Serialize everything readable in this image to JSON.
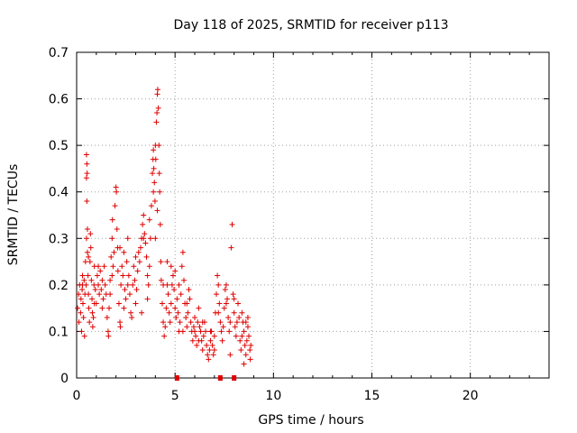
{
  "chart_data": {
    "type": "scatter",
    "title": "Day 118 of 2025, SRMTID for receiver p113",
    "xlabel": "GPS time / hours",
    "ylabel": "SRMTID / TECUs",
    "xlim": [
      0,
      24
    ],
    "ylim": [
      0,
      0.7
    ],
    "xticks": [
      "0",
      "5",
      "10",
      "15",
      "20"
    ],
    "yticks": [
      "0",
      "0.1",
      "0.2",
      "0.3",
      "0.4",
      "0.5",
      "0.6",
      "0.7"
    ],
    "grid": true,
    "marker": "plus",
    "color": "#e00000",
    "series": [
      {
        "name": "SRMTID",
        "points": [
          [
            0.05,
            0.15
          ],
          [
            0.1,
            0.18
          ],
          [
            0.12,
            0.12
          ],
          [
            0.15,
            0.2
          ],
          [
            0.2,
            0.14
          ],
          [
            0.22,
            0.17
          ],
          [
            0.25,
            0.1
          ],
          [
            0.28,
            0.19
          ],
          [
            0.3,
            0.22
          ],
          [
            0.32,
            0.16
          ],
          [
            0.35,
            0.13
          ],
          [
            0.38,
            0.21
          ],
          [
            0.4,
            0.09
          ],
          [
            0.42,
            0.18
          ],
          [
            0.45,
            0.25
          ],
          [
            0.48,
            0.2
          ],
          [
            0.5,
            0.3
          ],
          [
            0.52,
            0.38
          ],
          [
            0.5,
            0.43
          ],
          [
            0.52,
            0.46
          ],
          [
            0.5,
            0.48
          ],
          [
            0.53,
            0.44
          ],
          [
            0.55,
            0.32
          ],
          [
            0.55,
            0.27
          ],
          [
            0.58,
            0.22
          ],
          [
            0.6,
            0.18
          ],
          [
            0.62,
            0.15
          ],
          [
            0.65,
            0.12
          ],
          [
            0.68,
            0.25
          ],
          [
            0.7,
            0.31
          ],
          [
            0.72,
            0.28
          ],
          [
            0.75,
            0.21
          ],
          [
            0.78,
            0.17
          ],
          [
            0.8,
            0.14
          ],
          [
            0.82,
            0.11
          ],
          [
            0.85,
            0.13
          ],
          [
            0.88,
            0.2
          ],
          [
            0.9,
            0.24
          ],
          [
            0.95,
            0.19
          ],
          [
            1.0,
            0.16
          ],
          [
            1.05,
            0.22
          ],
          [
            1.1,
            0.2
          ],
          [
            1.15,
            0.18
          ],
          [
            1.2,
            0.23
          ],
          [
            1.25,
            0.19
          ],
          [
            1.3,
            0.21
          ],
          [
            1.35,
            0.17
          ],
          [
            1.4,
            0.24
          ],
          [
            1.45,
            0.2
          ],
          [
            1.5,
            0.18
          ],
          [
            1.55,
            0.13
          ],
          [
            1.6,
            0.1
          ],
          [
            1.62,
            0.09
          ],
          [
            1.65,
            0.15
          ],
          [
            1.7,
            0.21
          ],
          [
            1.75,
            0.26
          ],
          [
            1.8,
            0.3
          ],
          [
            1.82,
            0.34
          ],
          [
            1.85,
            0.24
          ],
          [
            1.9,
            0.27
          ],
          [
            1.95,
            0.37
          ],
          [
            2.0,
            0.41
          ],
          [
            2.02,
            0.4
          ],
          [
            2.05,
            0.32
          ],
          [
            2.08,
            0.28
          ],
          [
            2.1,
            0.23
          ],
          [
            2.15,
            0.16
          ],
          [
            2.2,
            0.12
          ],
          [
            2.22,
            0.11
          ],
          [
            2.25,
            0.2
          ],
          [
            2.3,
            0.24
          ],
          [
            2.35,
            0.22
          ],
          [
            2.4,
            0.27
          ],
          [
            2.45,
            0.19
          ],
          [
            2.5,
            0.17
          ],
          [
            2.55,
            0.25
          ],
          [
            2.6,
            0.3
          ],
          [
            2.65,
            0.22
          ],
          [
            2.7,
            0.18
          ],
          [
            2.75,
            0.14
          ],
          [
            2.8,
            0.13
          ],
          [
            2.85,
            0.2
          ],
          [
            2.9,
            0.24
          ],
          [
            2.95,
            0.21
          ],
          [
            3.0,
            0.16
          ],
          [
            3.05,
            0.19
          ],
          [
            3.1,
            0.23
          ],
          [
            3.15,
            0.27
          ],
          [
            3.2,
            0.25
          ],
          [
            3.25,
            0.28
          ],
          [
            3.3,
            0.3
          ],
          [
            3.35,
            0.33
          ],
          [
            3.4,
            0.35
          ],
          [
            3.45,
            0.31
          ],
          [
            3.5,
            0.29
          ],
          [
            3.55,
            0.26
          ],
          [
            3.6,
            0.22
          ],
          [
            3.65,
            0.2
          ],
          [
            3.7,
            0.24
          ],
          [
            3.75,
            0.3
          ],
          [
            3.8,
            0.37
          ],
          [
            3.85,
            0.44
          ],
          [
            3.88,
            0.47
          ],
          [
            3.9,
            0.49
          ],
          [
            3.92,
            0.45
          ],
          [
            3.95,
            0.42
          ],
          [
            3.98,
            0.38
          ],
          [
            4.0,
            0.5
          ],
          [
            4.02,
            0.47
          ],
          [
            4.05,
            0.55
          ],
          [
            4.08,
            0.57
          ],
          [
            4.1,
            0.61
          ],
          [
            4.12,
            0.62
          ],
          [
            4.15,
            0.58
          ],
          [
            4.18,
            0.5
          ],
          [
            4.2,
            0.44
          ],
          [
            4.22,
            0.4
          ],
          [
            4.25,
            0.33
          ],
          [
            4.28,
            0.25
          ],
          [
            4.3,
            0.21
          ],
          [
            4.35,
            0.16
          ],
          [
            4.4,
            0.12
          ],
          [
            4.45,
            0.09
          ],
          [
            4.5,
            0.11
          ],
          [
            4.55,
            0.15
          ],
          [
            4.6,
            0.2
          ],
          [
            4.65,
            0.18
          ],
          [
            4.7,
            0.14
          ],
          [
            4.75,
            0.12
          ],
          [
            4.8,
            0.16
          ],
          [
            4.85,
            0.2
          ],
          [
            4.9,
            0.22
          ],
          [
            4.95,
            0.19
          ],
          [
            5.0,
            0.15
          ],
          [
            5.05,
            0.13
          ],
          [
            5.1,
            0.17
          ],
          [
            5.15,
            0.14
          ],
          [
            5.2,
            0.1
          ],
          [
            5.25,
            0.12
          ],
          [
            5.3,
            0.18
          ],
          [
            5.35,
            0.24
          ],
          [
            5.4,
            0.27
          ],
          [
            5.45,
            0.21
          ],
          [
            5.5,
            0.16
          ],
          [
            5.55,
            0.13
          ],
          [
            5.6,
            0.11
          ],
          [
            5.65,
            0.14
          ],
          [
            5.7,
            0.19
          ],
          [
            5.75,
            0.17
          ],
          [
            5.8,
            0.12
          ],
          [
            5.85,
            0.1
          ],
          [
            5.9,
            0.08
          ],
          [
            5.95,
            0.11
          ],
          [
            6.0,
            0.13
          ],
          [
            6.05,
            0.09
          ],
          [
            6.1,
            0.07
          ],
          [
            6.15,
            0.12
          ],
          [
            6.2,
            0.15
          ],
          [
            6.25,
            0.11
          ],
          [
            6.3,
            0.1
          ],
          [
            6.35,
            0.08
          ],
          [
            6.4,
            0.06
          ],
          [
            6.45,
            0.09
          ],
          [
            6.5,
            0.12
          ],
          [
            6.55,
            0.1
          ],
          [
            6.6,
            0.07
          ],
          [
            6.65,
            0.05
          ],
          [
            6.7,
            0.04
          ],
          [
            6.75,
            0.06
          ],
          [
            6.8,
            0.08
          ],
          [
            6.85,
            0.1
          ],
          [
            6.9,
            0.07
          ],
          [
            6.95,
            0.05
          ],
          [
            7.0,
            0.09
          ],
          [
            7.05,
            0.14
          ],
          [
            7.1,
            0.18
          ],
          [
            7.15,
            0.22
          ],
          [
            7.2,
            0.2
          ],
          [
            7.25,
            0.16
          ],
          [
            7.3,
            0.12
          ],
          [
            7.35,
            0.1
          ],
          [
            7.4,
            0.08
          ],
          [
            7.45,
            0.11
          ],
          [
            7.5,
            0.15
          ],
          [
            7.55,
            0.19
          ],
          [
            7.6,
            0.2
          ],
          [
            7.65,
            0.17
          ],
          [
            7.7,
            0.13
          ],
          [
            7.75,
            0.1
          ],
          [
            7.8,
            0.12
          ],
          [
            7.85,
            0.28
          ],
          [
            7.9,
            0.33
          ],
          [
            7.95,
            0.18
          ],
          [
            8.0,
            0.14
          ],
          [
            8.05,
            0.11
          ],
          [
            8.1,
            0.09
          ],
          [
            8.15,
            0.12
          ],
          [
            8.2,
            0.16
          ],
          [
            8.25,
            0.13
          ],
          [
            8.3,
            0.08
          ],
          [
            8.35,
            0.06
          ],
          [
            8.4,
            0.09
          ],
          [
            8.45,
            0.12
          ],
          [
            8.5,
            0.1
          ],
          [
            8.55,
            0.07
          ],
          [
            8.6,
            0.05
          ],
          [
            8.65,
            0.08
          ],
          [
            8.7,
            0.11
          ],
          [
            8.75,
            0.09
          ],
          [
            8.8,
            0.06
          ],
          [
            8.82,
            0.04
          ],
          [
            8.85,
            0.07
          ],
          [
            0.3,
            0.2
          ],
          [
            0.6,
            0.26
          ],
          [
            1.1,
            0.24
          ],
          [
            1.3,
            0.15
          ],
          [
            1.8,
            0.22
          ],
          [
            2.2,
            0.28
          ],
          [
            2.6,
            0.2
          ],
          [
            3.0,
            0.26
          ],
          [
            3.4,
            0.3
          ],
          [
            3.7,
            0.34
          ],
          [
            3.9,
            0.4
          ],
          [
            4.1,
            0.36
          ],
          [
            4.4,
            0.2
          ],
          [
            4.8,
            0.24
          ],
          [
            5.2,
            0.2
          ],
          [
            5.6,
            0.16
          ],
          [
            6.0,
            0.1
          ],
          [
            6.4,
            0.12
          ],
          [
            6.8,
            0.1
          ],
          [
            7.2,
            0.14
          ],
          [
            7.6,
            0.16
          ],
          [
            8.0,
            0.17
          ],
          [
            8.4,
            0.14
          ],
          [
            8.7,
            0.13
          ],
          [
            0.9,
            0.16
          ],
          [
            1.7,
            0.18
          ],
          [
            2.4,
            0.15
          ],
          [
            3.3,
            0.14
          ],
          [
            3.6,
            0.17
          ],
          [
            4.0,
            0.3
          ],
          [
            4.6,
            0.25
          ],
          [
            5.0,
            0.23
          ],
          [
            5.4,
            0.1
          ],
          [
            6.2,
            0.08
          ],
          [
            7.0,
            0.06
          ],
          [
            7.8,
            0.05
          ],
          [
            8.5,
            0.03
          ],
          [
            8.6,
            0.12
          ]
        ]
      }
    ],
    "markers_on_x_axis": [
      5.1,
      7.3,
      8.0
    ]
  }
}
